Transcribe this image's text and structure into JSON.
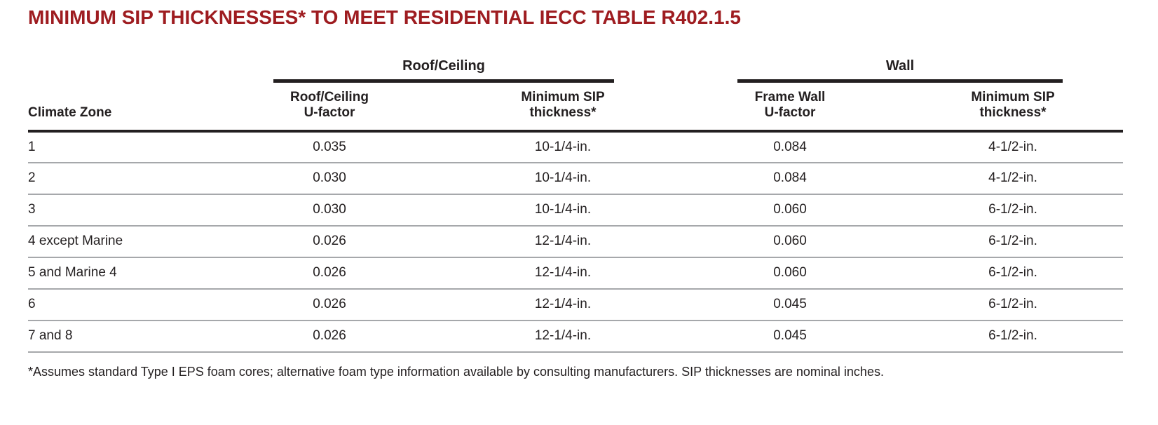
{
  "title": "MINIMUM SIP THICKNESSES* TO MEET RESIDENTIAL IECC TABLE R402.1.5",
  "colors": {
    "title_red": "#9e1c20",
    "body_text": "#231f20",
    "header_rule_black": "#231f20",
    "row_rule_gray": "#a6a8ab"
  },
  "table": {
    "group_headers": {
      "roof_ceiling": "Roof/Ceiling",
      "wall": "Wall"
    },
    "column_headers": {
      "climate_zone": "Climate Zone",
      "roof_u_factor": "Roof/Ceiling\nU-factor",
      "roof_sip_thickness": "Minimum SIP\nthickness*",
      "wall_u_factor": "Frame Wall\nU-factor",
      "wall_sip_thickness": "Minimum SIP\nthickness*"
    },
    "column_order": [
      "climate_zone",
      "roof_u_factor",
      "roof_sip_thickness",
      "wall_u_factor",
      "wall_sip_thickness"
    ],
    "rows": [
      {
        "climate_zone": "1",
        "roof_u_factor": "0.035",
        "roof_sip_thickness": "10-1/4-in.",
        "wall_u_factor": "0.084",
        "wall_sip_thickness": "4-1/2-in."
      },
      {
        "climate_zone": "2",
        "roof_u_factor": "0.030",
        "roof_sip_thickness": "10-1/4-in.",
        "wall_u_factor": "0.084",
        "wall_sip_thickness": "4-1/2-in."
      },
      {
        "climate_zone": "3",
        "roof_u_factor": "0.030",
        "roof_sip_thickness": "10-1/4-in.",
        "wall_u_factor": "0.060",
        "wall_sip_thickness": "6-1/2-in."
      },
      {
        "climate_zone": "4 except Marine",
        "roof_u_factor": "0.026",
        "roof_sip_thickness": "12-1/4-in.",
        "wall_u_factor": "0.060",
        "wall_sip_thickness": "6-1/2-in."
      },
      {
        "climate_zone": "5 and Marine 4",
        "roof_u_factor": "0.026",
        "roof_sip_thickness": "12-1/4-in.",
        "wall_u_factor": "0.060",
        "wall_sip_thickness": "6-1/2-in."
      },
      {
        "climate_zone": "6",
        "roof_u_factor": "0.026",
        "roof_sip_thickness": "12-1/4-in.",
        "wall_u_factor": "0.045",
        "wall_sip_thickness": "6-1/2-in."
      },
      {
        "climate_zone": "7 and 8",
        "roof_u_factor": "0.026",
        "roof_sip_thickness": "12-1/4-in.",
        "wall_u_factor": "0.045",
        "wall_sip_thickness": "6-1/2-in."
      }
    ]
  },
  "footnote": "*Assumes standard Type I EPS foam cores; alternative foam type information available by consulting manufacturers. SIP thicknesses are nominal inches."
}
